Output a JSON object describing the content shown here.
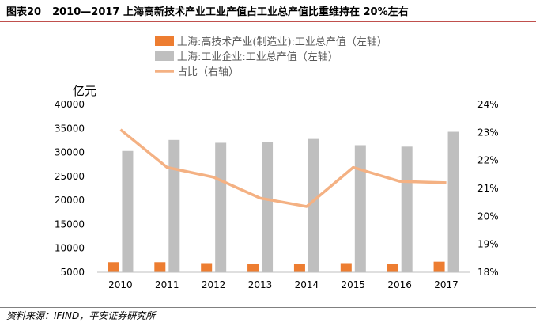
{
  "figure_number": "图表20",
  "title": "2010—2017 上海高新技术产业工业产值占工业总产值比重维持在 20%左右",
  "source": "资料来源：IFIND，平安证券研究所",
  "chart_data": {
    "type": "bar",
    "categories": [
      "2010",
      "2011",
      "2012",
      "2013",
      "2014",
      "2015",
      "2016",
      "2017"
    ],
    "series": [
      {
        "name": "上海:高技术产业(制造业):工业总产值（左轴）",
        "kind": "bar",
        "axis": "left",
        "color": "#ed7d31",
        "values": [
          7100,
          7100,
          6900,
          6700,
          6700,
          6900,
          6700,
          7200
        ]
      },
      {
        "name": "上海:工业企业:工业总产值（左轴）",
        "kind": "bar",
        "axis": "left",
        "color": "#bfbfbf",
        "values": [
          30300,
          32600,
          32000,
          32200,
          32800,
          31500,
          31200,
          34300
        ]
      },
      {
        "name": "占比（右轴）",
        "kind": "line",
        "axis": "right",
        "color": "#f4b183",
        "values": [
          23.1,
          21.75,
          21.4,
          20.65,
          20.35,
          21.75,
          21.25,
          21.2
        ]
      }
    ],
    "ylabel": "亿元",
    "ylim": [
      5000,
      40000
    ],
    "yticks": [
      "40000",
      "35000",
      "30000",
      "25000",
      "20000",
      "15000",
      "10000",
      "5000"
    ],
    "y2lim": [
      18,
      24
    ],
    "y2ticks": [
      "24%",
      "23%",
      "22%",
      "21%",
      "20%",
      "19%",
      "18%"
    ],
    "legend_position": "top-left"
  }
}
